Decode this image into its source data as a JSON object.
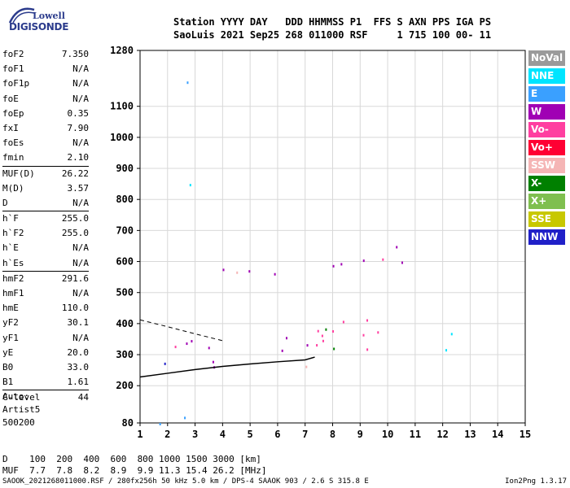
{
  "logo": {
    "line1": "Lowell",
    "line2": "DIGISONDE"
  },
  "header": {
    "line1": "Station YYYY DAY   DDD HHMMSS P1  FFS S AXN PPS IGA PS",
    "line2": "SaoLuis 2021 Sep25 268 011000 RSF     1 715 100 00- 11"
  },
  "params": [
    {
      "name": "foF2",
      "value": "7.350"
    },
    {
      "name": "foF1",
      "value": "N/A"
    },
    {
      "name": "foF1p",
      "value": "N/A"
    },
    {
      "name": "foE",
      "value": "N/A"
    },
    {
      "name": "foEp",
      "value": "0.35"
    },
    {
      "name": "fxI",
      "value": "7.90"
    },
    {
      "name": "foEs",
      "value": "N/A"
    },
    {
      "name": "fmin",
      "value": "2.10"
    },
    {
      "name": "MUF(D)",
      "value": "26.22"
    },
    {
      "name": "M(D)",
      "value": "3.57"
    },
    {
      "name": "D",
      "value": "N/A"
    },
    {
      "name": "h`F",
      "value": "255.0"
    },
    {
      "name": "h`F2",
      "value": "255.0"
    },
    {
      "name": "h`E",
      "value": "N/A"
    },
    {
      "name": "h`Es",
      "value": "N/A"
    },
    {
      "name": "hmF2",
      "value": "291.6"
    },
    {
      "name": "hmF1",
      "value": "N/A"
    },
    {
      "name": "hmE",
      "value": "110.0"
    },
    {
      "name": "yF2",
      "value": "30.1"
    },
    {
      "name": "yF1",
      "value": "N/A"
    },
    {
      "name": "yE",
      "value": "20.0"
    },
    {
      "name": "B0",
      "value": "33.0"
    },
    {
      "name": "B1",
      "value": "1.61"
    },
    {
      "name": "C-level",
      "value": "44"
    }
  ],
  "auto": {
    "line1": "Auto:",
    "line2": "Artist5",
    "line3": "500200"
  },
  "legend": [
    {
      "label": "NoVal",
      "color": "#9a9a9a"
    },
    {
      "label": "NNE",
      "color": "#00e5ff"
    },
    {
      "label": "E",
      "color": "#3aa0ff"
    },
    {
      "label": "W",
      "color": "#a000b4"
    },
    {
      "label": "Vo-",
      "color": "#ff3fa0"
    },
    {
      "label": "Vo+",
      "color": "#ff0033"
    },
    {
      "label": "SSW",
      "color": "#f5b5b5"
    },
    {
      "label": "X-",
      "color": "#008000"
    },
    {
      "label": "X+",
      "color": "#7fbf4f"
    },
    {
      "label": "SSE",
      "color": "#c8c800"
    },
    {
      "label": "NNW",
      "color": "#2020c8"
    }
  ],
  "footer": {
    "line1": "D    100  200  400  600  800 1000 1500 3000 [km]",
    "line2": "MUF  7.7  7.8  8.2  8.9  9.9 11.3 15.4 26.2 [MHz]",
    "line3": "SAOOK_2021268011000.RSF / 280fx256h 50 kHz 5.0 km / DPS-4 SAAOK 903 / 2.6 S 315.8 E",
    "version": "Ion2Png 1.3.17"
  },
  "chart_data": {
    "type": "scatter",
    "x_ticks": [
      "1",
      "2",
      "3",
      "4",
      "5",
      "6",
      "7",
      "8",
      "9",
      "10",
      "11",
      "12",
      "13",
      "14",
      "15"
    ],
    "y_ticks": [
      "80",
      "200",
      "300",
      "400",
      "500",
      "600",
      "700",
      "800",
      "900",
      "1000",
      "1100",
      "1280"
    ],
    "xlim": [
      1,
      15
    ],
    "ylim": [
      80,
      1280
    ],
    "grid": true,
    "profile_curve": {
      "x": [
        1.0,
        2.0,
        3.0,
        4.0,
        5.0,
        6.0,
        7.0,
        7.35
      ],
      "y": [
        228,
        240,
        252,
        262,
        270,
        277,
        283,
        292
      ]
    },
    "trace_curve": {
      "x": [
        1.0,
        2.0,
        3.0,
        4.0
      ],
      "y": [
        412,
        390,
        367,
        345
      ]
    },
    "clusters": [
      {
        "color": "#a000b4",
        "x_range": [
          1.7,
          7.5
        ],
        "y_range": [
          240,
          360
        ]
      },
      {
        "color": "#ff3fa0",
        "x_range": [
          7.0,
          11.2
        ],
        "y_range": [
          280,
          440
        ]
      },
      {
        "color": "#a000b4",
        "x_range": [
          2.8,
          7.0
        ],
        "y_range": [
          530,
          580
        ]
      },
      {
        "color": "#a000b4",
        "x_range": [
          7.6,
          9.5
        ],
        "y_range": [
          560,
          640
        ]
      },
      {
        "color": "#2020c8",
        "x_range": [
          1.7,
          3.0
        ],
        "y_range": [
          240,
          320
        ]
      }
    ],
    "isolated_points": [
      {
        "x": 2.7,
        "y": 1180,
        "color": "#3aa0ff"
      },
      {
        "x": 2.8,
        "y": 850,
        "color": "#00e5ff"
      },
      {
        "x": 1.7,
        "y": 80,
        "color": "#3aa0ff"
      },
      {
        "x": 2.6,
        "y": 100,
        "color": "#3aa0ff"
      },
      {
        "x": 12.1,
        "y": 318,
        "color": "#00e5ff"
      },
      {
        "x": 12.3,
        "y": 370,
        "color": "#00e5ff"
      },
      {
        "x": 10.3,
        "y": 650,
        "color": "#a000b4"
      },
      {
        "x": 9.8,
        "y": 610,
        "color": "#ff3fa0"
      },
      {
        "x": 10.5,
        "y": 600,
        "color": "#a000b4"
      }
    ]
  }
}
